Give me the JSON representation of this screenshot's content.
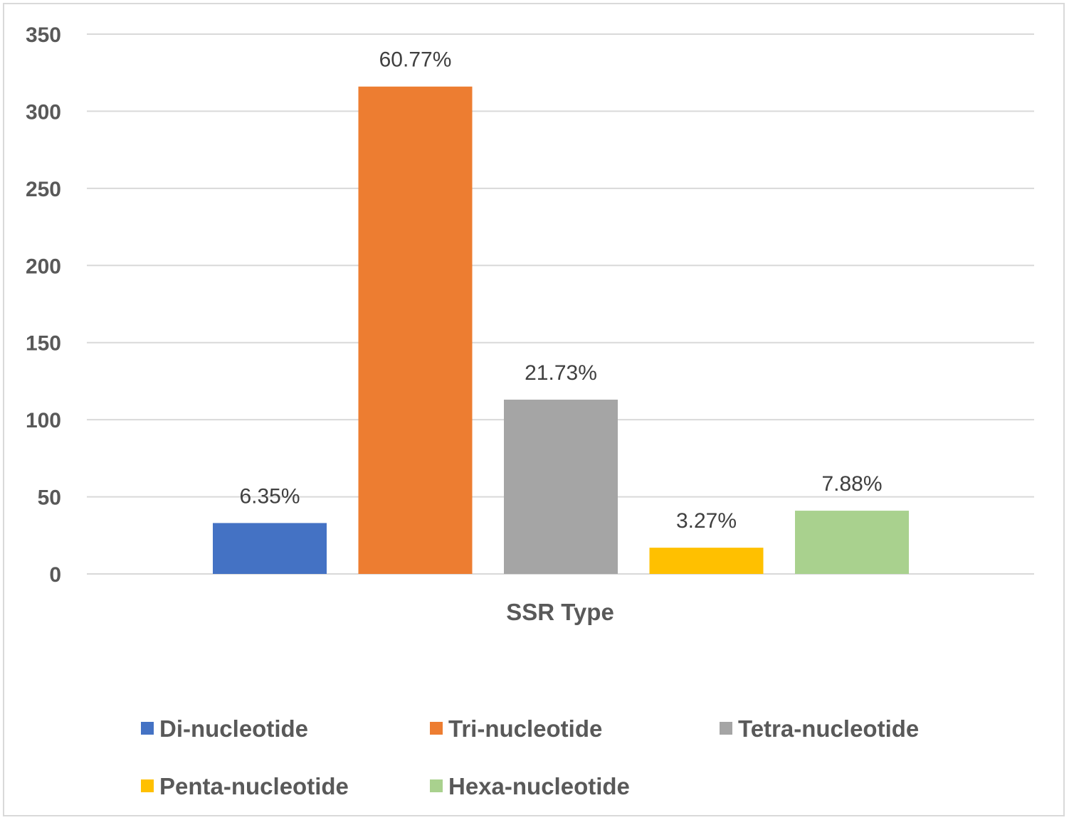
{
  "chart_data": {
    "type": "bar",
    "title": "",
    "xlabel": "SSR Type",
    "ylabel": "",
    "ylim": [
      0,
      350
    ],
    "yticks": [
      0,
      50,
      100,
      150,
      200,
      250,
      300,
      350
    ],
    "grid": true,
    "legend_position": "bottom",
    "series": [
      {
        "name": "Di-nucleotide",
        "value": 33,
        "label": "6.35%",
        "color": "#4472c4"
      },
      {
        "name": "Tri-nucleotide",
        "value": 316,
        "label": "60.77%",
        "color": "#ed7d31"
      },
      {
        "name": "Tetra-nucleotide",
        "value": 113,
        "label": "21.73%",
        "color": "#a5a5a5"
      },
      {
        "name": "Penta-nucleotide",
        "value": 17,
        "label": "3.27%",
        "color": "#ffc000"
      },
      {
        "name": "Hexa-nucleotide",
        "value": 41,
        "label": "7.88%",
        "color": "#a9d18e"
      }
    ]
  }
}
